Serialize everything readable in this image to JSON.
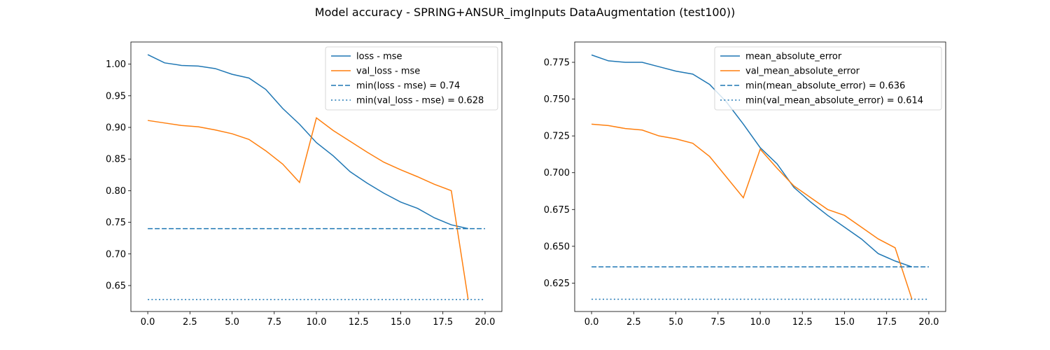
{
  "suptitle": "Model accuracy - SPRING+ANSUR_imgInputs DataAugmentation (test100))",
  "colors": {
    "series1": "#1f77b4",
    "series2": "#ff7f0e"
  },
  "chart_data": [
    {
      "type": "line",
      "xlim": [
        -1.0,
        21.0
      ],
      "ylim": [
        0.609,
        1.035
      ],
      "xticks": [
        0.0,
        2.5,
        5.0,
        7.5,
        10.0,
        12.5,
        15.0,
        17.5,
        20.0
      ],
      "xtick_labels": [
        "0.0",
        "2.5",
        "5.0",
        "7.5",
        "10.0",
        "12.5",
        "15.0",
        "17.5",
        "20.0"
      ],
      "yticks": [
        0.65,
        0.7,
        0.75,
        0.8,
        0.85,
        0.9,
        0.95,
        1.0
      ],
      "ytick_labels": [
        "0.65",
        "0.70",
        "0.75",
        "0.80",
        "0.85",
        "0.90",
        "0.95",
        "1.00"
      ],
      "legend_position": "top-right",
      "grid": false,
      "series": [
        {
          "name": "loss - mse",
          "style": "solid",
          "color": "#1f77b4",
          "x": [
            0,
            1,
            2,
            3,
            4,
            5,
            6,
            7,
            8,
            9,
            10,
            11,
            12,
            13,
            14,
            15,
            16,
            17,
            18,
            19
          ],
          "values": [
            1.015,
            1.002,
            0.998,
            0.997,
            0.993,
            0.984,
            0.978,
            0.96,
            0.93,
            0.905,
            0.876,
            0.855,
            0.83,
            0.812,
            0.796,
            0.782,
            0.772,
            0.757,
            0.746,
            0.74
          ]
        },
        {
          "name": "val_loss - mse",
          "style": "solid",
          "color": "#ff7f0e",
          "x": [
            0,
            1,
            2,
            3,
            4,
            5,
            6,
            7,
            8,
            9,
            10,
            11,
            12,
            13,
            14,
            15,
            16,
            17,
            18,
            19
          ],
          "values": [
            0.911,
            0.907,
            0.903,
            0.901,
            0.896,
            0.89,
            0.881,
            0.863,
            0.842,
            0.813,
            0.915,
            0.895,
            0.878,
            0.861,
            0.845,
            0.833,
            0.822,
            0.81,
            0.8,
            0.628
          ]
        },
        {
          "name": "min(loss - mse) = 0.74",
          "style": "dashed",
          "color": "#1f77b4",
          "x": [
            0,
            20
          ],
          "values": [
            0.74,
            0.74
          ]
        },
        {
          "name": "min(val_loss - mse) = 0.628",
          "style": "dotted",
          "color": "#1f77b4",
          "x": [
            0,
            20
          ],
          "values": [
            0.628,
            0.628
          ]
        }
      ]
    },
    {
      "type": "line",
      "xlim": [
        -1.0,
        21.0
      ],
      "ylim": [
        0.6057,
        0.7888
      ],
      "xticks": [
        0.0,
        2.5,
        5.0,
        7.5,
        10.0,
        12.5,
        15.0,
        17.5,
        20.0
      ],
      "xtick_labels": [
        "0.0",
        "2.5",
        "5.0",
        "7.5",
        "10.0",
        "12.5",
        "15.0",
        "17.5",
        "20.0"
      ],
      "yticks": [
        0.625,
        0.65,
        0.675,
        0.7,
        0.725,
        0.75,
        0.775
      ],
      "ytick_labels": [
        "0.625",
        "0.650",
        "0.675",
        "0.700",
        "0.725",
        "0.750",
        "0.775"
      ],
      "legend_position": "top-right",
      "grid": false,
      "series": [
        {
          "name": "mean_absolute_error",
          "style": "solid",
          "color": "#1f77b4",
          "x": [
            0,
            1,
            2,
            3,
            4,
            5,
            6,
            7,
            8,
            9,
            10,
            11,
            12,
            13,
            14,
            15,
            16,
            17,
            18,
            19
          ],
          "values": [
            0.78,
            0.776,
            0.775,
            0.775,
            0.772,
            0.769,
            0.767,
            0.76,
            0.748,
            0.733,
            0.717,
            0.706,
            0.69,
            0.68,
            0.671,
            0.663,
            0.655,
            0.645,
            0.64,
            0.636
          ]
        },
        {
          "name": "val_mean_absolute_error",
          "style": "solid",
          "color": "#ff7f0e",
          "x": [
            0,
            1,
            2,
            3,
            4,
            5,
            6,
            7,
            8,
            9,
            10,
            11,
            12,
            13,
            14,
            15,
            16,
            17,
            18,
            19
          ],
          "values": [
            0.733,
            0.732,
            0.73,
            0.729,
            0.725,
            0.723,
            0.72,
            0.711,
            0.697,
            0.683,
            0.716,
            0.703,
            0.691,
            0.683,
            0.675,
            0.671,
            0.663,
            0.655,
            0.649,
            0.614
          ]
        },
        {
          "name": "min(mean_absolute_error) = 0.636",
          "style": "dashed",
          "color": "#1f77b4",
          "x": [
            0,
            20
          ],
          "values": [
            0.636,
            0.636
          ]
        },
        {
          "name": "min(val_mean_absolute_error) = 0.614",
          "style": "dotted",
          "color": "#1f77b4",
          "x": [
            0,
            20
          ],
          "values": [
            0.614,
            0.614
          ]
        }
      ]
    }
  ]
}
